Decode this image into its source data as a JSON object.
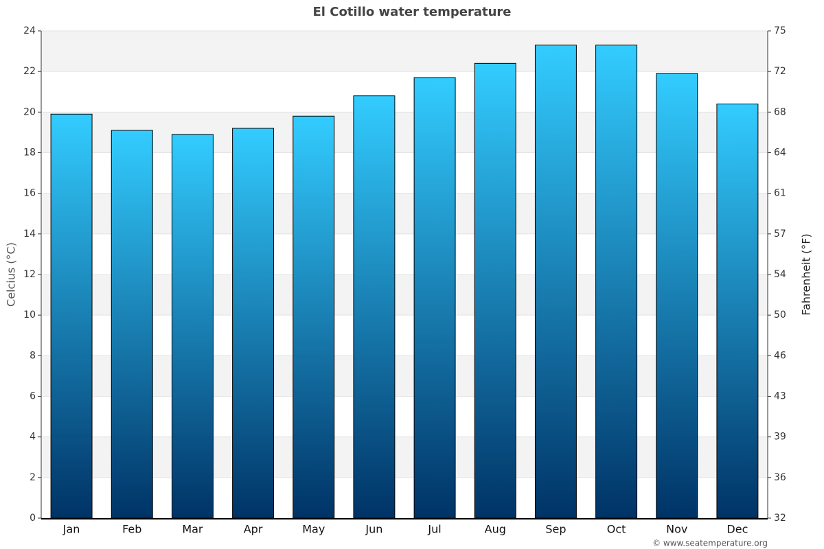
{
  "chart_data": {
    "type": "bar",
    "title": "El Cotillo water temperature",
    "categories": [
      "Jan",
      "Feb",
      "Mar",
      "Apr",
      "May",
      "Jun",
      "Jul",
      "Aug",
      "Sep",
      "Oct",
      "Nov",
      "Dec"
    ],
    "values": [
      19.9,
      19.1,
      18.9,
      19.2,
      19.8,
      20.8,
      21.7,
      22.4,
      23.3,
      23.3,
      21.9,
      20.4
    ],
    "color": [
      "#33ccff",
      "#003366"
    ],
    "y_label": "Celcius (°C)",
    "y2_label": "Fahrenheit (°F)",
    "ylim": [
      0,
      24
    ],
    "yticks": [
      0,
      2,
      4,
      6,
      8,
      10,
      12,
      14,
      16,
      18,
      20,
      22,
      24
    ],
    "y2lim": [
      32,
      75.2
    ],
    "y2ticks": [
      32,
      {
        "value": 35.6,
        "label": "36"
      },
      {
        "value": 39.2,
        "label": "39"
      },
      {
        "value": 42.8,
        "label": "43"
      },
      {
        "value": 46.4,
        "label": "46"
      },
      50,
      {
        "value": 53.6,
        "label": "54"
      },
      {
        "value": 57.2,
        "label": "57"
      },
      {
        "value": 60.8,
        "label": "61"
      },
      {
        "value": 64.4,
        "label": "64"
      },
      68,
      {
        "value": 71.6,
        "label": "72"
      },
      {
        "value": 75.2,
        "label": "75"
      }
    ],
    "grid": true,
    "source": "© www.seatemperature.org"
  }
}
